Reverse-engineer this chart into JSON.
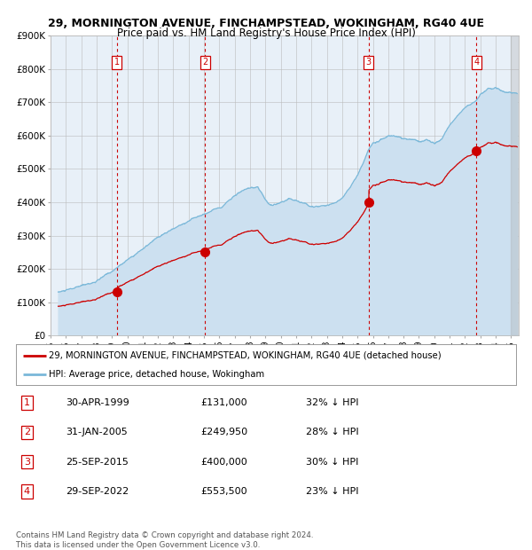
{
  "title1": "29, MORNINGTON AVENUE, FINCHAMPSTEAD, WOKINGHAM, RG40 4UE",
  "title2": "Price paid vs. HM Land Registry's House Price Index (HPI)",
  "ylim": [
    0,
    900000
  ],
  "yticks": [
    0,
    100000,
    200000,
    300000,
    400000,
    500000,
    600000,
    700000,
    800000,
    900000
  ],
  "ytick_labels": [
    "£0",
    "£100K",
    "£200K",
    "£300K",
    "£400K",
    "£500K",
    "£600K",
    "£700K",
    "£800K",
    "£900K"
  ],
  "sale_dates_num": [
    1999.33,
    2005.08,
    2015.73,
    2022.75
  ],
  "sale_prices": [
    131000,
    249950,
    400000,
    553500
  ],
  "sale_labels": [
    "1",
    "2",
    "3",
    "4"
  ],
  "sale_dates_str": [
    "30-APR-1999",
    "31-JAN-2005",
    "25-SEP-2015",
    "29-SEP-2022"
  ],
  "sale_pct": [
    "32% ↓ HPI",
    "28% ↓ HPI",
    "30% ↓ HPI",
    "23% ↓ HPI"
  ],
  "sale_prices_str": [
    "£131,000",
    "£249,950",
    "£400,000",
    "£553,500"
  ],
  "hpi_color": "#7ab8d9",
  "hpi_fill_color": "#cce0f0",
  "red_line_color": "#cc0000",
  "dashed_color": "#cc0000",
  "marker_color": "#cc0000",
  "xmin": 1995.5,
  "xmax": 2025.5,
  "xtick_years": [
    1995,
    1996,
    1997,
    1998,
    1999,
    2000,
    2001,
    2002,
    2003,
    2004,
    2005,
    2006,
    2007,
    2008,
    2009,
    2010,
    2011,
    2012,
    2013,
    2014,
    2015,
    2016,
    2017,
    2018,
    2019,
    2020,
    2021,
    2022,
    2023,
    2024,
    2025
  ],
  "legend_red_label": "29, MORNINGTON AVENUE, FINCHAMPSTEAD, WOKINGHAM, RG40 4UE (detached house)",
  "legend_blue_label": "HPI: Average price, detached house, Wokingham",
  "footer": "Contains HM Land Registry data © Crown copyright and database right 2024.\nThis data is licensed under the Open Government Licence v3.0.",
  "background_color": "#ffffff",
  "plot_bg_color": "#e8f0f8"
}
